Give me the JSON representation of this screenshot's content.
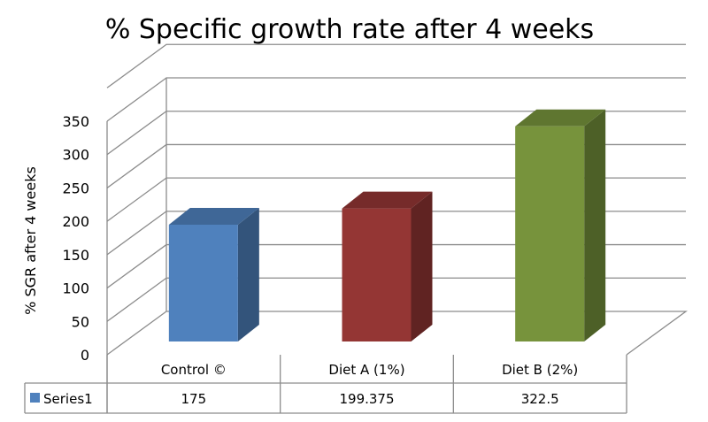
{
  "chart_data": {
    "type": "bar",
    "title": "% Specific growth rate after 4 weeks",
    "xlabel": "",
    "ylabel": "% SGR after 4 weeks",
    "categories": [
      "Control ©",
      "Diet A (1%)",
      "Diet B (2%)"
    ],
    "series": [
      {
        "name": "Series1",
        "values": [
          175,
          199.375,
          322.5
        ],
        "value_labels": [
          "175",
          "199.375",
          "322.5"
        ],
        "colors": [
          "#4f81bd",
          "#943634",
          "#77933c"
        ]
      }
    ],
    "yticks": [
      "0",
      "50",
      "100",
      "150",
      "200",
      "250",
      "300",
      "350"
    ],
    "ylim": [
      0,
      350
    ],
    "grid": true,
    "legend": "data-table",
    "style": "3d-column"
  }
}
